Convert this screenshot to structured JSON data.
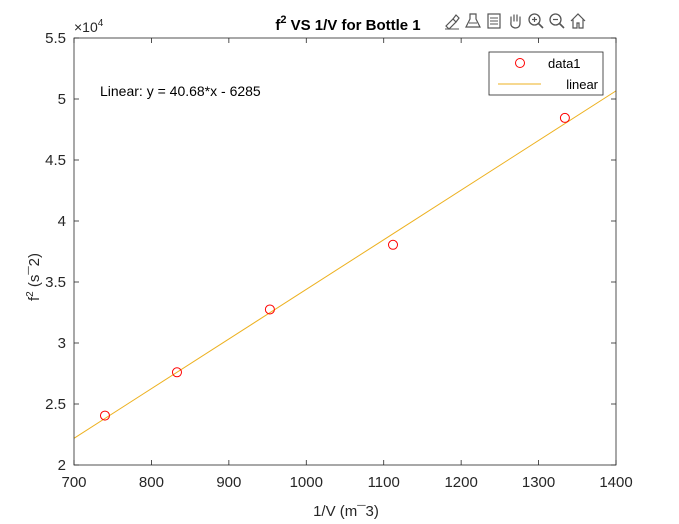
{
  "toolbar": {
    "icons": [
      "brush-icon",
      "data-tips-icon",
      "legend-icon",
      "pan-icon",
      "zoom-in-icon",
      "zoom-out-icon",
      "home-icon"
    ]
  },
  "chart_data": {
    "type": "scatter",
    "title": "f² VS 1/V for Bottle 1",
    "title_main": "f",
    "title_sup": "2",
    "title_rest": " VS 1/V for Bottle 1",
    "xlabel": "1/V (m¯3)",
    "ylabel_main": "f",
    "ylabel_sup": "2",
    "ylabel_rest": " (s¯2)",
    "xlim": [
      700,
      1400
    ],
    "ylim": [
      20000,
      55000
    ],
    "y_exponent_label": "×10",
    "y_exponent_power": "4",
    "x_ticks": [
      700,
      800,
      900,
      1000,
      1100,
      1200,
      1300,
      1400
    ],
    "x_tick_labels": [
      "700",
      "800",
      "900",
      "1000",
      "1100",
      "1200",
      "1300",
      "1400"
    ],
    "y_ticks": [
      20000,
      25000,
      30000,
      35000,
      40000,
      45000,
      50000,
      55000
    ],
    "y_tick_labels": [
      "2",
      "2.5",
      "3",
      "3.5",
      "4",
      "4.5",
      "5",
      "5.5"
    ],
    "grid": false,
    "legend_position": "top-right",
    "annotation": "Linear:  y = 40.68*x - 6285",
    "series": [
      {
        "name": "data1",
        "kind": "markers",
        "marker": "circle",
        "color": "#ff0000",
        "x": [
          740,
          833,
          953,
          1112,
          1334
        ],
        "y": [
          24050,
          27600,
          32750,
          38050,
          48450
        ]
      },
      {
        "name": "linear",
        "kind": "line",
        "color": "#edb120",
        "slope": 40.68,
        "intercept": -6285
      }
    ]
  }
}
